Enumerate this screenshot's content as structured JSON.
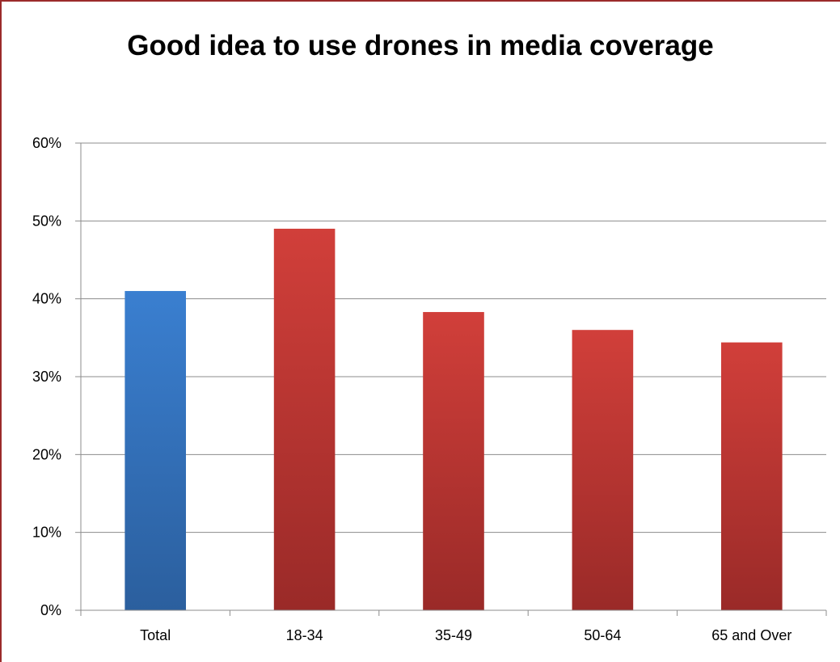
{
  "chart_data": {
    "type": "bar",
    "title": "Good idea to use drones in media coverage",
    "xlabel": "",
    "ylabel": "",
    "categories": [
      "Total",
      "18-34",
      "35-49",
      "50-64",
      "65 and Over"
    ],
    "values": [
      41,
      49,
      38.3,
      36,
      34.4
    ],
    "value_format": "percent",
    "ylim": [
      0,
      60
    ],
    "yticks": [
      0,
      10,
      20,
      30,
      40,
      50,
      60
    ],
    "ytick_labels": [
      "0%",
      "10%",
      "20%",
      "30%",
      "40%",
      "50%",
      "60%"
    ],
    "grid": true,
    "legend": "none",
    "bar_colors": [
      "#3a7fd0",
      "#d13f3a",
      "#d13f3a",
      "#d13f3a",
      "#d13f3a"
    ],
    "bar_colors_dark": [
      "#2b5f9e",
      "#9a2a28",
      "#9a2a28",
      "#9a2a28",
      "#9a2a28"
    ],
    "gridline_color": "#8c8c8c",
    "border_color": "#9b2b2b"
  }
}
